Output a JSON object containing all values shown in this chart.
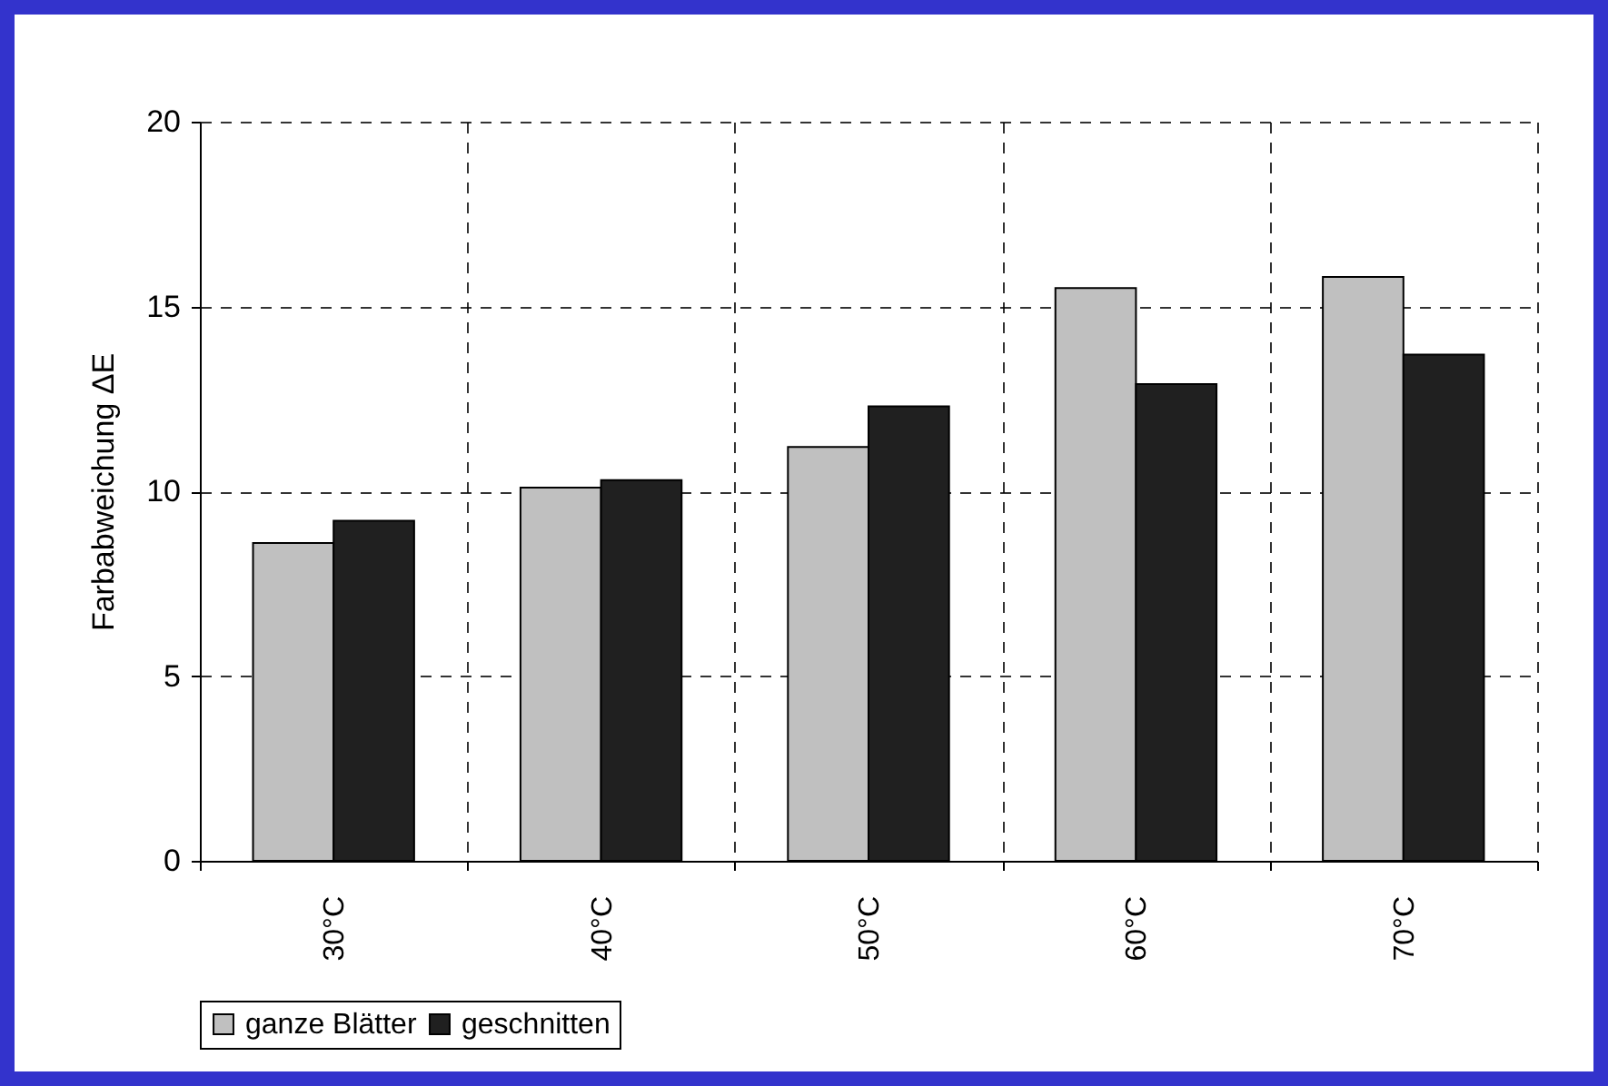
{
  "chart_data": {
    "type": "bar",
    "ylabel": "Farbabweichung ΔE",
    "categories": [
      "30°C",
      "40°C",
      "50°C",
      "60°C",
      "70°C"
    ],
    "series": [
      {
        "name": "ganze Blätter",
        "color": "#c0c0c0",
        "values": [
          8.6,
          10.1,
          11.2,
          15.5,
          15.8
        ]
      },
      {
        "name": "geschnitten",
        "color": "#202020",
        "values": [
          9.2,
          10.3,
          12.3,
          12.9,
          13.7
        ]
      }
    ],
    "ylim": [
      0,
      20
    ],
    "yticks": [
      0,
      5,
      10,
      15,
      20
    ],
    "grid": true,
    "legend": "bottom"
  }
}
